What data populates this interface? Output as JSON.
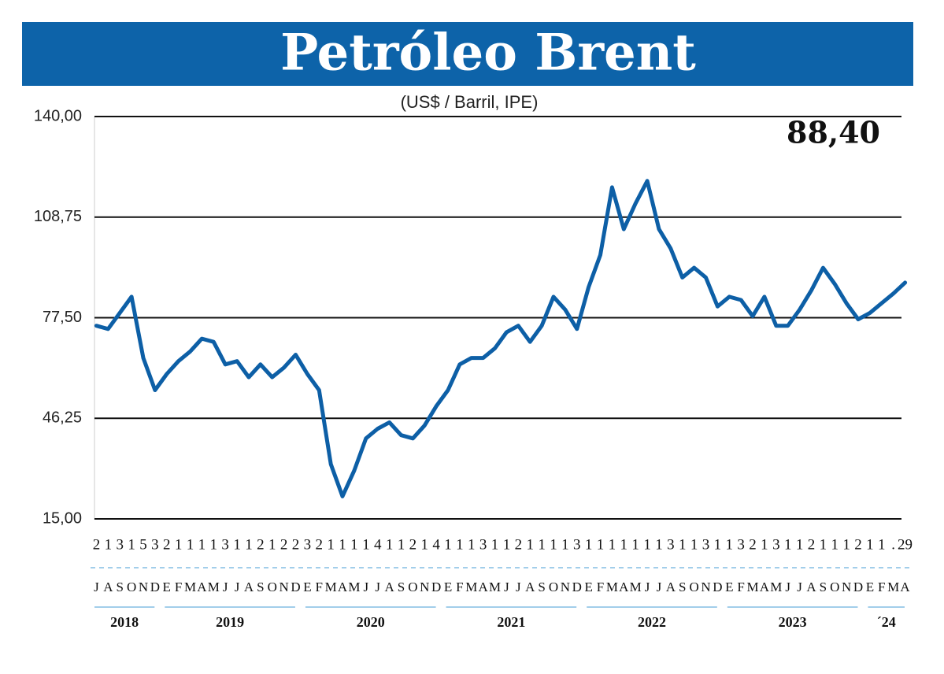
{
  "chart_data": {
    "type": "line",
    "title": "Petróleo Brent",
    "subtitle": "(US$ / Barril, IPE)",
    "annotation": "88,40",
    "categories": [
      "J",
      "A",
      "S",
      "O",
      "N",
      "D",
      "E",
      "F",
      "M",
      "A",
      "M",
      "J",
      "J",
      "A",
      "S",
      "O",
      "N",
      "D",
      "E",
      "F",
      "M",
      "A",
      "M",
      "J",
      "J",
      "A",
      "S",
      "O",
      "N",
      "D",
      "E",
      "F",
      "M",
      "A",
      "M",
      "J",
      "J",
      "A",
      "S",
      "O",
      "N",
      "D",
      "E",
      "F",
      "M",
      "A",
      "M",
      "J",
      "J",
      "A",
      "S",
      "O",
      "N",
      "D",
      "E",
      "F",
      "M",
      "A",
      "M",
      "J",
      "J",
      "A",
      "S",
      "O",
      "N",
      "D",
      "E",
      "F",
      "M",
      "A"
    ],
    "day_labels": [
      "2",
      "1",
      "3",
      "1",
      "5",
      "3",
      "2",
      "1",
      "1",
      "1",
      "1",
      "3",
      "1",
      "1",
      "2",
      "1",
      "2",
      "2",
      "3",
      "2",
      "1",
      "1",
      "1",
      "1",
      "4",
      "1",
      "1",
      "2",
      "1",
      "4",
      "1",
      "1",
      "1",
      "3",
      "1",
      "1",
      "2",
      "1",
      "1",
      "1",
      "1",
      "3",
      "1",
      "1",
      "1",
      "1",
      "1",
      "1",
      "1",
      "3",
      "1",
      "1",
      "3",
      "1",
      "1",
      "3",
      "2",
      "1",
      "3",
      "1",
      "1",
      "2",
      "1",
      "1",
      "1",
      "2",
      "1",
      "1",
      ".",
      "29"
    ],
    "years": [
      "2018",
      "2019",
      "2020",
      "2021",
      "2022",
      "2023",
      "´24"
    ],
    "series": [
      {
        "name": "Brent",
        "color": "#0d5fa6",
        "values": [
          75,
          74,
          79,
          84,
          65,
          55,
          60,
          64,
          67,
          71,
          70,
          63,
          64,
          59,
          63,
          59,
          62,
          66,
          60,
          55,
          32,
          22,
          30,
          40,
          43,
          45,
          41,
          40,
          44,
          50,
          55,
          63,
          65,
          65,
          68,
          73,
          75,
          70,
          75,
          84,
          80,
          74,
          87,
          97,
          118,
          105,
          113,
          120,
          105,
          99,
          90,
          93,
          90,
          81,
          84,
          83,
          78,
          84,
          75,
          75,
          80,
          86,
          93,
          88,
          82,
          77,
          79,
          82,
          85,
          88.4
        ]
      }
    ],
    "ylim": [
      15,
      140
    ],
    "yticks": [
      {
        "value": 15,
        "label": "15,00"
      },
      {
        "value": 46.25,
        "label": "46,25"
      },
      {
        "value": 77.5,
        "label": "77,50"
      },
      {
        "value": 108.75,
        "label": "108,75"
      },
      {
        "value": 140,
        "label": "140,00"
      }
    ],
    "grid": true
  }
}
